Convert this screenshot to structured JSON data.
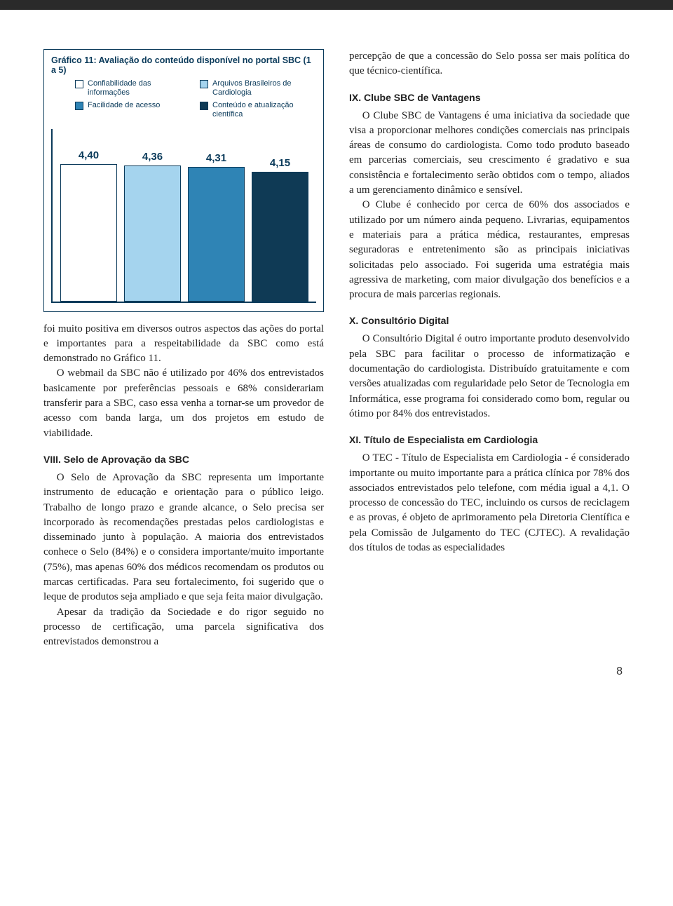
{
  "chart": {
    "type": "bar",
    "title": "Gráfico 11: Avaliação do conteúdo disponível no portal SBC (1 a 5)",
    "legend": [
      {
        "label": "Confiabilidade das informações",
        "color": "#ffffff"
      },
      {
        "label": "Arquivos Brasileiros de Cardiologia",
        "color": "#a5d4ee"
      },
      {
        "label": "Facilidade de acesso",
        "color": "#2f84b5"
      },
      {
        "label": "Conteúdo e atualização científica",
        "color": "#0f3a55"
      }
    ],
    "ylim": [
      0,
      5
    ],
    "bars": [
      {
        "value": 4.4,
        "label": "4,40",
        "color": "#ffffff"
      },
      {
        "value": 4.36,
        "label": "4,36",
        "color": "#a5d4ee"
      },
      {
        "value": 4.31,
        "label": "4,31",
        "color": "#2f84b5"
      },
      {
        "value": 4.15,
        "label": "4,15",
        "color": "#0f3a55"
      }
    ],
    "border_color": "#0a3a5a",
    "label_fontsize": 15,
    "title_fontsize": 12.5
  },
  "left": {
    "p1": "foi muito positiva em diversos outros aspectos das ações do portal e importantes para a respeitabilidade da SBC como está demonstrado no Gráfico 11.",
    "p2": "O webmail da SBC não é utilizado por 46% dos entrevistados basicamente por preferências pessoais e 68% considerariam transferir para a SBC, caso essa venha a tornar-se um provedor de acesso com banda larga, um dos projetos em estudo de viabilidade.",
    "h8": "VIII. Selo de Aprovação da SBC",
    "p3": "O Selo de Aprovação da SBC representa um importante instrumento de educação e orientação para o público leigo. Trabalho de longo prazo e grande alcance, o Selo precisa ser incorporado às recomendações prestadas pelos cardiologistas e disseminado junto à população. A maioria dos entrevistados conhece o Selo (84%) e o considera importante/muito importante (75%), mas apenas 60% dos médicos recomendam os produtos ou marcas certificadas. Para seu fortalecimento, foi sugerido que o leque de produtos seja ampliado e que seja feita maior divulgação.",
    "p4": "Apesar da tradição da Sociedade e do rigor seguido no processo de certificação, uma parcela significativa dos entrevistados demonstrou a"
  },
  "right": {
    "p0": "percepção de que a concessão do Selo possa ser mais política do que técnico-científica.",
    "h9": "IX. Clube SBC de Vantagens",
    "p1": "O Clube SBC de Vantagens é uma iniciativa da sociedade que visa a proporcionar melhores condições comerciais nas principais áreas de consumo do cardiologista. Como todo produto baseado em parcerias comerciais, seu crescimento é gradativo e sua consistência e fortalecimento serão obtidos com o tempo, aliados a um gerenciamento dinâmico e sensível.",
    "p2": "O Clube é conhecido por cerca de 60% dos associados e utilizado por um número ainda pequeno. Livrarias, equipamentos e materiais para a prática médica, restaurantes, empresas seguradoras e entretenimento são as principais iniciativas solicitadas pelo associado. Foi sugerida uma estratégia mais agressiva de marketing, com maior divulgação dos benefícios e a procura de mais parcerias regionais.",
    "h10": "X. Consultório Digital",
    "p3": "O Consultório Digital é outro importante produto desenvolvido pela SBC para facilitar o processo de informatização e documentação do cardiologista. Distribuído gratuitamente e com versões atualizadas com regularidade pelo Setor de Tecnologia em Informática, esse programa foi considerado como bom, regular ou ótimo por 84% dos entrevistados.",
    "h11": "XI. Título de Especialista em Cardiologia",
    "p4": "O TEC - Título de Especialista em Cardiologia - é considerado importante ou muito importante para a prática clínica por 78% dos associados entrevistados pelo telefone, com média igual a 4,1. O processo de concessão do TEC, incluindo os cursos de reciclagem e as provas, é objeto de aprimoramento pela Diretoria Científica e pela Comissão de Julgamento do TEC (CJTEC). A revalidação dos títulos de todas as especialidades"
  },
  "page_number": "8"
}
